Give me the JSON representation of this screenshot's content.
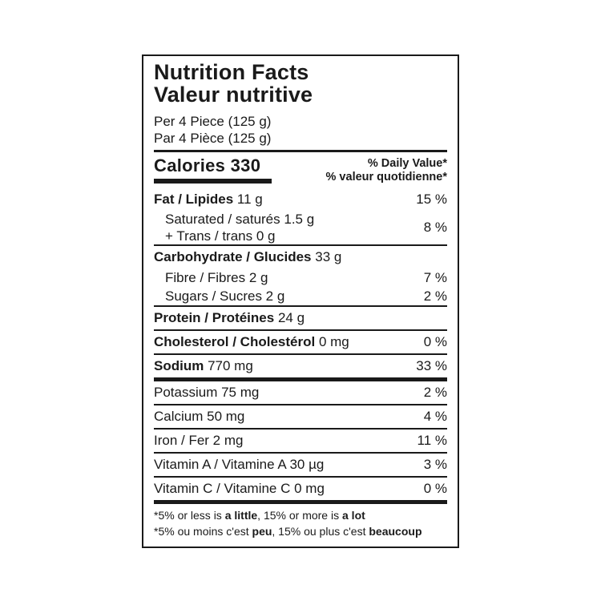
{
  "label": {
    "title_en": "Nutrition Facts",
    "title_fr": "Valeur nutritive",
    "serving_en": "Per 4 Piece (125 g)",
    "serving_fr": "Par 4 Pièce (125 g)",
    "calories": "Calories 330",
    "daily_value_header_en": "% Daily Value*",
    "daily_value_header_fr": "% valeur quotidienne*"
  },
  "rows": {
    "fat": {
      "name": "Fat / Lipides",
      "amount": "11 g",
      "dv": "15 %"
    },
    "saturated_trans": {
      "line1": "Saturated / saturés 1.5 g",
      "line2": "+ Trans / trans 0 g",
      "dv": "8 %"
    },
    "carbohydrate": {
      "name": "Carbohydrate / Glucides",
      "amount": "33 g"
    },
    "fibre": {
      "name": "Fibre / Fibres 2 g",
      "dv": "7 %"
    },
    "sugars": {
      "name": "Sugars / Sucres 2 g",
      "dv": "2 %"
    },
    "protein": {
      "name": "Protein / Protéines",
      "amount": "24 g"
    },
    "cholesterol": {
      "name": "Cholesterol / Cholestérol",
      "amount": "0 mg",
      "dv": "0 %"
    },
    "sodium": {
      "name": "Sodium",
      "amount": "770 mg",
      "dv": "33 %"
    },
    "potassium": {
      "name": "Potassium 75 mg",
      "dv": "2 %"
    },
    "calcium": {
      "name": "Calcium 50 mg",
      "dv": "4 %"
    },
    "iron": {
      "name": "Iron / Fer 2 mg",
      "dv": "11 %"
    },
    "vitamin_a": {
      "name": "Vitamin A / Vitamine A 30 µg",
      "dv": "3 %"
    },
    "vitamin_c": {
      "name": "Vitamin C / Vitamine C 0 mg",
      "dv": "0 %"
    }
  },
  "footnote": {
    "en": {
      "part1": "*5% or less is ",
      "bold1": "a little",
      "part2": ", 15% or more is ",
      "bold2": "a lot"
    },
    "fr": {
      "part1": "*5% ou moins c'est ",
      "bold1": "peu",
      "part2": ", 15% ou plus c'est ",
      "bold2": "beaucoup"
    }
  },
  "colors": {
    "text": "#1a1a1a",
    "rule": "#1a1a1a",
    "background": "#ffffff"
  }
}
